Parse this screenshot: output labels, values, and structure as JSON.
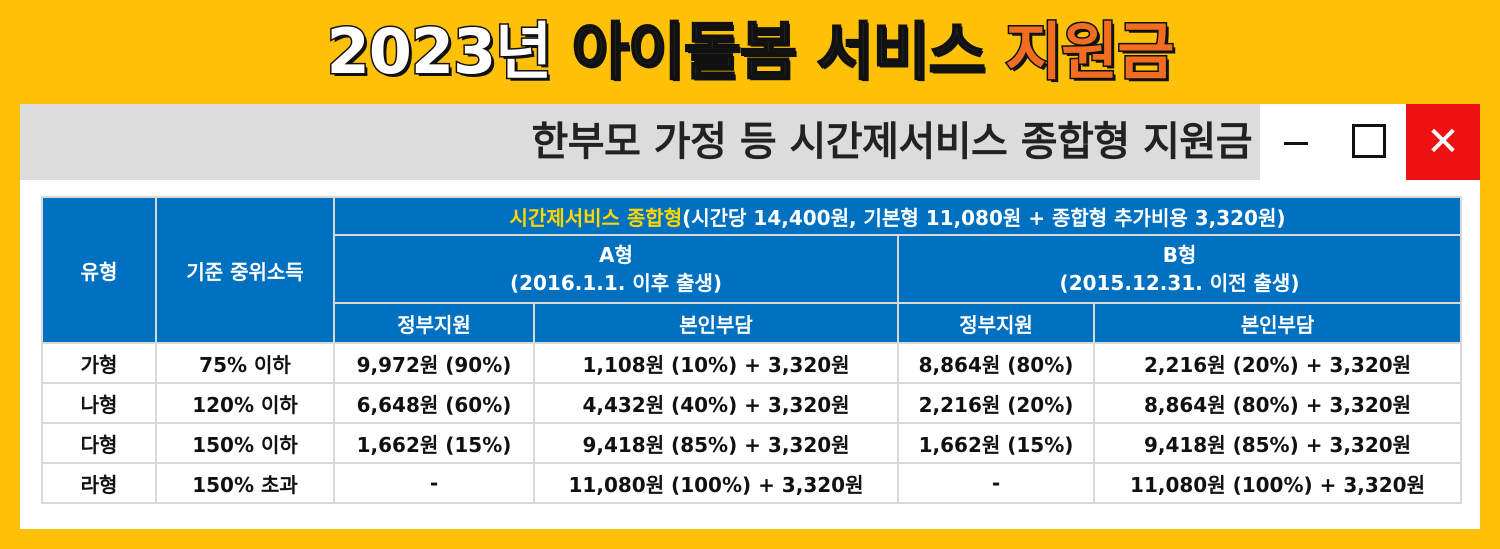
{
  "title": {
    "year": "2023년",
    "middle": "아이돌봄 서비스",
    "highlight": "지원금"
  },
  "window": {
    "title": "한부모 가정 등 시간제서비스 종합형 지원금",
    "min_icon": "minimize-icon",
    "max_icon": "maximize-icon",
    "close_icon": "close-icon",
    "close_glyph": "✕",
    "close_color": "#EE1111"
  },
  "table": {
    "col_type": "유형",
    "col_income": "기준 중위소득",
    "service_highlight": "시간제서비스 종합형",
    "service_rest": "(시간당 14,400원, 기본형 11,080원 + 종합형 추가비용 3,320원)",
    "groupA_line1": "A형",
    "groupA_line2": "(2016.1.1. 이후 출생)",
    "groupB_line1": "B형",
    "groupB_line2": "(2015.12.31. 이전 출생)",
    "gov_support": "정부지원",
    "self_pay": "본인부담",
    "rows": [
      {
        "type": "가형",
        "income": "75% 이하",
        "a_gov": "9,972원 (90%)",
        "a_self": "1,108원 (10%) + 3,320원",
        "b_gov": "8,864원 (80%)",
        "b_self": "2,216원 (20%) + 3,320원"
      },
      {
        "type": "나형",
        "income": "120% 이하",
        "a_gov": "6,648원 (60%)",
        "a_self": "4,432원 (40%) + 3,320원",
        "b_gov": "2,216원 (20%)",
        "b_self": "8,864원 (80%) + 3,320원"
      },
      {
        "type": "다형",
        "income": "150% 이하",
        "a_gov": "1,662원 (15%)",
        "a_self": "9,418원 (85%) + 3,320원",
        "b_gov": "1,662원 (15%)",
        "b_self": "9,418원 (85%) + 3,320원"
      },
      {
        "type": "라형",
        "income": "150% 초과",
        "a_gov": "-",
        "a_self": "11,080원 (100%) + 3,320원",
        "b_gov": "-",
        "b_self": "11,080원 (100%) + 3,320원"
      }
    ]
  },
  "colors": {
    "background": "#FFC107",
    "header_blue": "#0070C0",
    "highlight_orange": "#F26C21",
    "header_yellow": "#FFD700"
  }
}
